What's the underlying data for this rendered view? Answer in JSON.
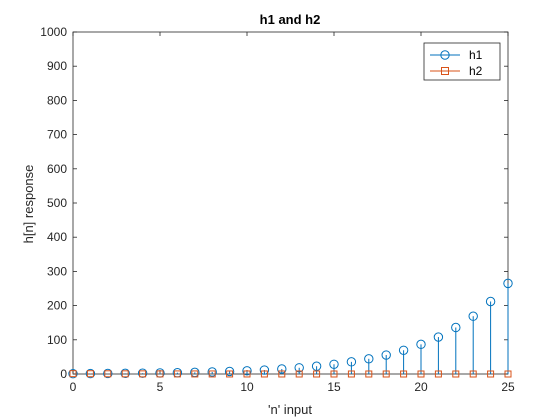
{
  "chart_data": {
    "type": "stem",
    "title": "h1 and h2",
    "xlabel": "'n' input",
    "ylabel": "h[n] response",
    "xlim": [
      0,
      25
    ],
    "ylim": [
      0,
      1000
    ],
    "xticks": [
      0,
      5,
      10,
      15,
      20,
      25
    ],
    "xtick_labels": [
      "0",
      "5",
      "10",
      "15",
      "20",
      "25"
    ],
    "yticks": [
      0,
      100,
      200,
      300,
      400,
      500,
      600,
      700,
      800,
      900,
      1000
    ],
    "ytick_labels": [
      "0",
      "100",
      "200",
      "300",
      "400",
      "500",
      "600",
      "700",
      "800",
      "900",
      "1000"
    ],
    "grid": false,
    "legend_position": "top-right",
    "x": [
      0,
      1,
      2,
      3,
      4,
      5,
      6,
      7,
      8,
      9,
      10,
      11,
      12,
      13,
      14,
      15,
      16,
      17,
      18,
      19,
      20,
      21,
      22,
      23,
      24,
      25
    ],
    "series": [
      {
        "name": "h1",
        "marker": "circle",
        "color": "#0072BD",
        "values": [
          1,
          1.25,
          1.56,
          1.95,
          2.44,
          3.05,
          3.81,
          4.77,
          5.96,
          7.45,
          9.31,
          11.6,
          14.6,
          18.2,
          22.7,
          28.4,
          35.5,
          44.4,
          55.5,
          69.4,
          86.7,
          108,
          136,
          169,
          212,
          265
        ]
      },
      {
        "name": "h2",
        "marker": "square",
        "color": "#D95319",
        "values": [
          1,
          0.8,
          0.64,
          0.51,
          0.41,
          0.33,
          0.26,
          0.21,
          0.17,
          0.13,
          0.11,
          0.09,
          0.07,
          0.05,
          0.04,
          0.04,
          0.03,
          0.02,
          0.02,
          0.01,
          0.01,
          0.01,
          0.01,
          0.01,
          0,
          0
        ]
      }
    ]
  }
}
